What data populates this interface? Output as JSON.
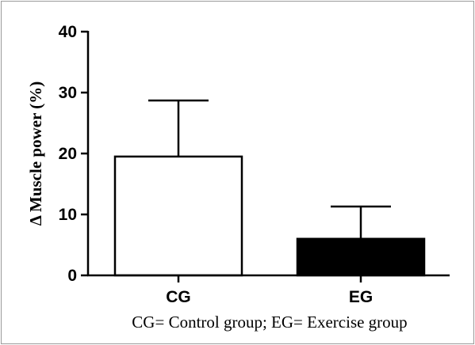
{
  "chart_data": {
    "type": "bar",
    "categories": [
      "CG",
      "EG"
    ],
    "values": [
      19.5,
      6
    ],
    "errors": [
      9.2,
      5.3
    ],
    "bar_fills": [
      "#ffffff",
      "#000000"
    ],
    "ylabel": "Δ Muscle power (%)",
    "xlabel": "",
    "ylim": [
      0,
      40
    ],
    "yticks": [
      0,
      10,
      20,
      30,
      40
    ],
    "grid": false,
    "caption": "CG= Control group; EG= Exercise group"
  }
}
